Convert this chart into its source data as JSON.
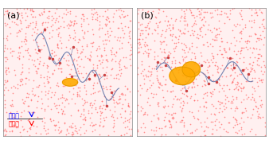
{
  "panel_a_label": "(a)",
  "panel_b_label": "(b)",
  "legend_hydrophilic": "親水性",
  "legend_hydrophobic": "疏水性",
  "legend_hydrophilic_color": "#0000ff",
  "legend_hydrophobic_color": "#ff0000",
  "background_color": "#ffffff",
  "water_color": "#ff6666",
  "peptide_color": "#6677aa",
  "hydrophobic_color": "#ffaa00",
  "fig_width": 3.38,
  "fig_height": 1.81,
  "dpi": 100
}
